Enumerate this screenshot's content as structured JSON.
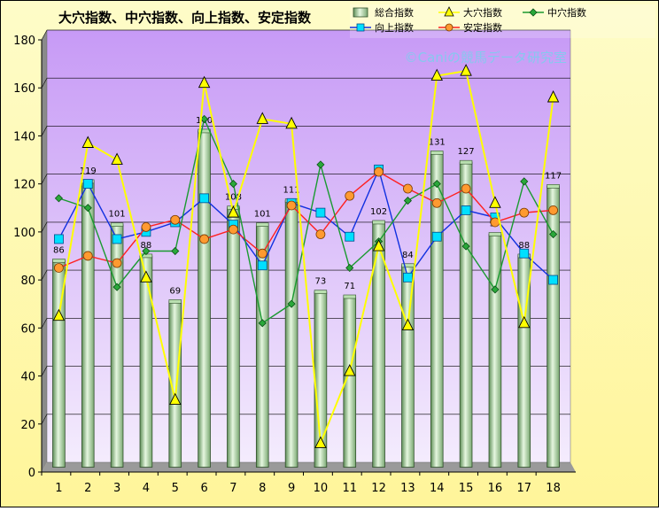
{
  "chart_data": {
    "type": "bar",
    "title": "大穴指数、中穴指数、向上指数、安定指数",
    "watermark": "©Caniの競馬データ研究室",
    "categories": [
      "1",
      "2",
      "3",
      "4",
      "5",
      "6",
      "7",
      "8",
      "9",
      "10",
      "11",
      "12",
      "13",
      "14",
      "15",
      "16",
      "17",
      "18"
    ],
    "ylim": [
      0,
      180
    ],
    "yticks": [
      0,
      20,
      40,
      60,
      80,
      100,
      120,
      140,
      160,
      180
    ],
    "grid": true,
    "legend_position": "top-right",
    "series": [
      {
        "name": "総合指数",
        "kind": "bar",
        "color": "#a8d8a0",
        "values": [
          86,
          119,
          101,
          88,
          69,
          140,
          108,
          101,
          111,
          73,
          71,
          102,
          84,
          131,
          127,
          97,
          88,
          117
        ]
      },
      {
        "name": "大穴指数",
        "kind": "line",
        "marker": "triangle",
        "color": "#ffff00",
        "values": [
          63,
          135,
          128,
          79,
          28,
          160,
          106,
          145,
          143,
          10,
          40,
          92,
          59,
          163,
          165,
          110,
          60,
          154
        ]
      },
      {
        "name": "中穴指数",
        "kind": "line",
        "marker": "diamond",
        "color": "#1a9a30",
        "values": [
          112,
          108,
          75,
          90,
          90,
          145,
          118,
          60,
          68,
          126,
          83,
          94,
          111,
          118,
          92,
          74,
          119,
          97
        ]
      },
      {
        "name": "向上指数",
        "kind": "line",
        "marker": "square",
        "color": "#1030e0",
        "values": [
          95,
          118,
          95,
          98,
          102,
          112,
          101,
          84,
          110,
          106,
          96,
          124,
          79,
          96,
          107,
          104,
          89,
          78
        ]
      },
      {
        "name": "安定指数",
        "kind": "line",
        "marker": "circle",
        "color": "#ff2020",
        "values": [
          83,
          88,
          85,
          100,
          103,
          95,
          99,
          89,
          109,
          97,
          113,
          123,
          116,
          110,
          116,
          102,
          106,
          107
        ]
      }
    ],
    "bar_labels": [
      "86",
      "119",
      "101",
      "88",
      "69",
      "140",
      "108",
      "101",
      "111",
      "73",
      "71",
      "102",
      "84",
      "131",
      "127",
      "97",
      "88",
      "117"
    ]
  }
}
